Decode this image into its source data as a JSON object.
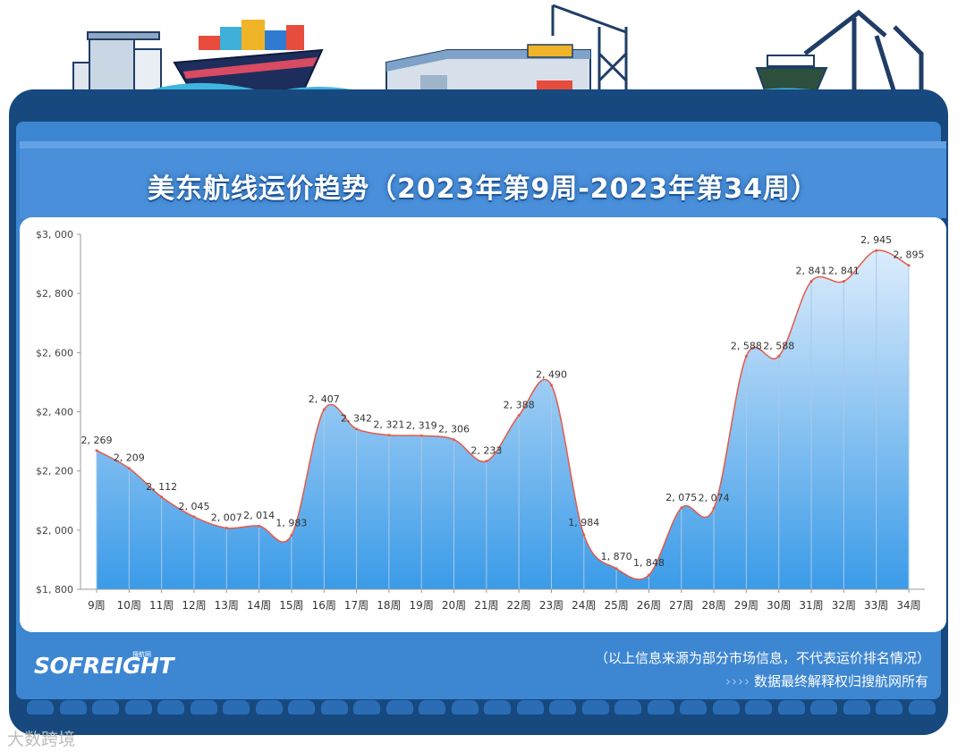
{
  "header": {
    "title": "美东航线运价趋势（2023年第9周-2023年第34周）"
  },
  "footer": {
    "brand": "SOFREIGHT",
    "brand_sub": "搜航网",
    "note_1": "（以上信息来源为部分市场信息，不代表运价排名情况）",
    "note_2_chevrons": "››››",
    "note_2": "数据最终解释权归搜航网所有",
    "source_mark": "大数跨境"
  },
  "colors": {
    "frame": "#17497f",
    "panel": "#3d86d2",
    "line": "#e35a4a",
    "area_top": "#c9e3fb",
    "area_bottom": "#3b9be8"
  },
  "chart_data": {
    "type": "area",
    "categories": [
      "9周",
      "10周",
      "11周",
      "12周",
      "13周",
      "14周",
      "15周",
      "16周",
      "17周",
      "18周",
      "19周",
      "20周",
      "21周",
      "22周",
      "23周",
      "24周",
      "25周",
      "26周",
      "27周",
      "28周",
      "29周",
      "30周",
      "31周",
      "32周",
      "33周",
      "34周"
    ],
    "values": [
      2269,
      2209,
      2112,
      2045,
      2007,
      2014,
      1983,
      2407,
      2342,
      2321,
      2319,
      2306,
      2233,
      2388,
      2490,
      1984,
      1870,
      1848,
      2075,
      2074,
      2588,
      2588,
      2841,
      2841,
      2945,
      2895
    ],
    "data_labels": [
      "2, 269",
      "2, 209",
      "2, 112",
      "2, 045",
      "2, 007",
      "2, 014",
      "1, 983",
      "2, 407",
      "2, 342",
      "2, 321",
      "2, 319",
      "2, 306",
      "2, 233",
      "2, 388",
      "2, 490",
      "1, 984",
      "1, 870",
      "1, 848",
      "2, 075",
      "2, 074",
      "2, 588",
      "2, 588",
      "2, 841",
      "2, 841",
      "2, 945",
      "2, 895"
    ],
    "y_ticks": [
      1800,
      2000,
      2200,
      2400,
      2600,
      2800,
      3000
    ],
    "y_tick_labels": [
      "$1, 800",
      "$2, 000",
      "$2, 200",
      "$2, 400",
      "$2, 600",
      "$2, 800",
      "$3, 000"
    ],
    "ylim": [
      1800,
      3000
    ],
    "grid": false,
    "legend": "none"
  }
}
